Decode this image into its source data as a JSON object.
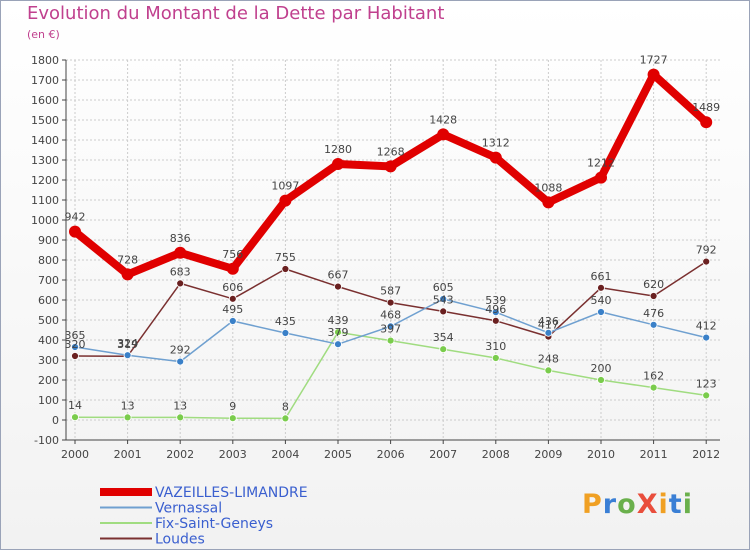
{
  "header": {
    "title": "Evolution du Montant de la Dette par Habitant",
    "subtitle": "(en €)"
  },
  "logo": {
    "text": "ProXiti",
    "letter_colors": [
      "#f0a023",
      "#3a7fd5",
      "#6ab04c",
      "#e94e3c",
      "#f0a023",
      "#3a7fd5",
      "#6ab04c"
    ]
  },
  "colors": {
    "title": "#c0408e",
    "grid": "#cccccc",
    "axis": "#444444",
    "label": "#444444"
  },
  "chart_data": {
    "type": "line",
    "title": "Evolution du Montant de la Dette par Habitant",
    "subtitle": "(en €)",
    "xlabel": "",
    "ylabel": "",
    "x": [
      "2000",
      "2001",
      "2002",
      "2003",
      "2004",
      "2005",
      "2006",
      "2007",
      "2008",
      "2009",
      "2010",
      "2011",
      "2012"
    ],
    "ylim": [
      -100,
      1800
    ],
    "yticks": [
      "-100",
      "0",
      "100",
      "200",
      "300",
      "400",
      "500",
      "600",
      "700",
      "800",
      "900",
      "1000",
      "1100",
      "1200",
      "1300",
      "1400",
      "1500",
      "1600",
      "1700",
      "1800"
    ],
    "grid": true,
    "legend_position": "bottom",
    "series": [
      {
        "name": "VAZEILLES-LIMANDRE",
        "color": "#e00000",
        "dot_color": "#e00000",
        "width": 8,
        "dot_radius": 6,
        "values": [
          942,
          728,
          836,
          756,
          1097,
          1280,
          1268,
          1428,
          1312,
          1088,
          1212,
          1727,
          1489
        ],
        "labels": [
          "942",
          "728",
          "836",
          "756",
          "1097",
          "1280",
          "1268",
          "1428",
          "1312",
          "1088",
          "1212",
          "1727",
          "1489"
        ]
      },
      {
        "name": "Vernassal",
        "color": "#6fa0d0",
        "dot_color": "#3a80c8",
        "width": 1.5,
        "dot_radius": 3.5,
        "values": [
          365,
          324,
          292,
          495,
          435,
          379,
          468,
          605,
          539,
          436,
          540,
          476,
          412
        ],
        "labels": [
          "365",
          "324",
          "292",
          "495",
          "435",
          "379",
          "468",
          "605",
          "539",
          "436",
          "540",
          "476",
          "412"
        ]
      },
      {
        "name": "Fix-Saint-Geneys",
        "color": "#a0dc80",
        "dot_color": "#7acc4c",
        "width": 1.5,
        "dot_radius": 3.5,
        "values": [
          14,
          13,
          13,
          9,
          8,
          439,
          397,
          354,
          310,
          248,
          200,
          162,
          123
        ],
        "labels": [
          "14",
          "13",
          "13",
          "9",
          "8",
          "439",
          "397",
          "354",
          "310",
          "248",
          "200",
          "162",
          "123"
        ]
      },
      {
        "name": "Loudes",
        "color": "#7a3030",
        "dot_color": "#6a2020",
        "width": 1.5,
        "dot_radius": 3.5,
        "values": [
          320,
          319,
          683,
          606,
          755,
          667,
          587,
          543,
          496,
          417,
          661,
          620,
          792
        ],
        "labels": [
          "320",
          "319",
          "683",
          "606",
          "755",
          "667",
          "587",
          "543",
          "496",
          "417",
          "661",
          "620",
          "792"
        ]
      }
    ]
  }
}
